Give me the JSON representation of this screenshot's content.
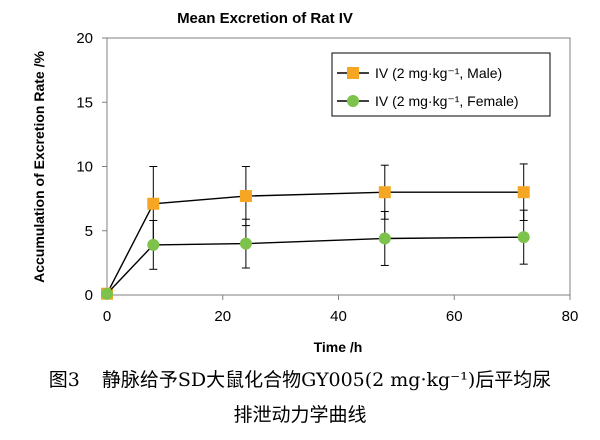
{
  "chart_data": {
    "type": "line",
    "title": "Mean Excretion of Rat IV",
    "xlabel": "Time /h",
    "ylabel": "Accumulation of Excretion Rate /%",
    "xlim": [
      0,
      80
    ],
    "ylim": [
      0,
      20
    ],
    "x_ticks": [
      0,
      20,
      40,
      60,
      80
    ],
    "y_ticks": [
      0,
      5,
      10,
      15,
      20
    ],
    "grid": false,
    "legend_position": "top-right",
    "series": [
      {
        "name": "IV (2 mg·kg⁻¹, Male)",
        "marker": "square",
        "color": "#F5A623",
        "x": [
          0,
          8,
          24,
          48,
          72
        ],
        "y": [
          0.1,
          7.1,
          7.7,
          8.0,
          8.0
        ],
        "error": [
          0,
          2.9,
          2.3,
          2.1,
          2.2
        ]
      },
      {
        "name": "IV (2 mg·kg⁻¹, Female)",
        "marker": "circle",
        "color": "#7DC24B",
        "x": [
          0,
          8,
          24,
          48,
          72
        ],
        "y": [
          0.1,
          3.9,
          4.0,
          4.4,
          4.5
        ],
        "error": [
          0,
          1.9,
          1.9,
          2.1,
          2.1
        ]
      }
    ]
  },
  "caption": {
    "figure_number": "图3",
    "line1": "静脉给予SD大鼠化合物GY005(2 mg·kg⁻¹)后平均尿",
    "line2": "排泄动力学曲线"
  }
}
